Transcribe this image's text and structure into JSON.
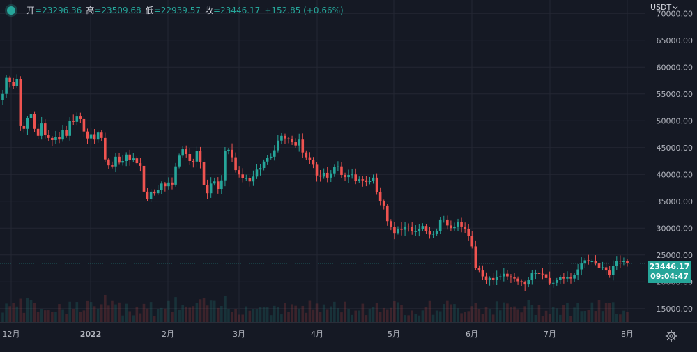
{
  "legend": {
    "open_label": "开",
    "open_value": "=23296.36",
    "high_label": "高",
    "high_value": "=23509.68",
    "low_label": "低",
    "low_value": "=22939.57",
    "close_label": "收",
    "close_value": "=23446.17",
    "change_value": "+152.85 (+0.66%)"
  },
  "currency": {
    "label": "USDT",
    "icon": "chevron-down-icon"
  },
  "last_price": {
    "price": "23446.17",
    "countdown": "09:04:47",
    "color": "#26a69a"
  },
  "settings": {
    "icon": "gear-icon"
  },
  "colors": {
    "up": "#26a69a",
    "down": "#ef5350",
    "background": "#151924",
    "grid": "#242733",
    "text": "#b2b5be"
  },
  "chart_data": {
    "type": "candlestick",
    "price_axis_labels": [
      "70000.00",
      "65000.00",
      "60000.00",
      "55000.00",
      "50000.00",
      "45000.00",
      "40000.00",
      "35000.00",
      "30000.00",
      "25000.00",
      "20000.00",
      "15000.00"
    ],
    "time_axis_labels": [
      "12月",
      "2022",
      "2月",
      "3月",
      "4月",
      "5月",
      "6月",
      "7月",
      "8月"
    ],
    "ylim": [
      12500,
      72500
    ],
    "last_price": 23446.17,
    "closes": [
      55000,
      58000,
      57300,
      56500,
      57800,
      49000,
      48500,
      50500,
      51300,
      48500,
      47200,
      49500,
      47300,
      46800,
      46400,
      47000,
      46500,
      48300,
      47200,
      50000,
      49800,
      50800,
      50300,
      48000,
      46700,
      47500,
      46500,
      47800,
      46800,
      42800,
      41700,
      41500,
      43300,
      42200,
      42500,
      43700,
      42700,
      43000,
      42100,
      41600,
      36800,
      35400,
      36800,
      36500,
      37100,
      38300,
      37800,
      38500,
      38100,
      41500,
      43500,
      44700,
      43800,
      42500,
      42400,
      44400,
      42300,
      38000,
      36500,
      38300,
      38700,
      37300,
      38900,
      44400,
      44600,
      43200,
      40800,
      40000,
      39300,
      39300,
      38700,
      39600,
      40900,
      41200,
      42400,
      43100,
      43300,
      44500,
      46300,
      47200,
      46700,
      46600,
      46000,
      45400,
      46500,
      44100,
      43200,
      42700,
      41800,
      39800,
      39600,
      40300,
      39400,
      40200,
      41400,
      41500,
      39900,
      39500,
      39900,
      40000,
      38800,
      39100,
      38900,
      38600,
      38800,
      39400,
      36700,
      35000,
      34200,
      31300,
      30200,
      29100,
      29900,
      29700,
      30300,
      30200,
      29400,
      29400,
      29800,
      30400,
      29400,
      28800,
      29000,
      29500,
      31600,
      31600,
      30500,
      30000,
      30300,
      31200,
      30300,
      29800,
      28500,
      26600,
      22500,
      22100,
      21000,
      20300,
      20700,
      20400,
      20900,
      21000,
      21500,
      21000,
      20800,
      20600,
      20100,
      19900,
      19500,
      20400,
      21600,
      21600,
      21500,
      21400,
      20700,
      19700,
      19800,
      20300,
      20900,
      20600,
      20800,
      20600,
      21200,
      22300,
      23400,
      24000,
      23800,
      23800,
      23400,
      22600,
      22700,
      22100,
      21300,
      23000,
      23900,
      23800,
      23800,
      23446.17
    ]
  }
}
